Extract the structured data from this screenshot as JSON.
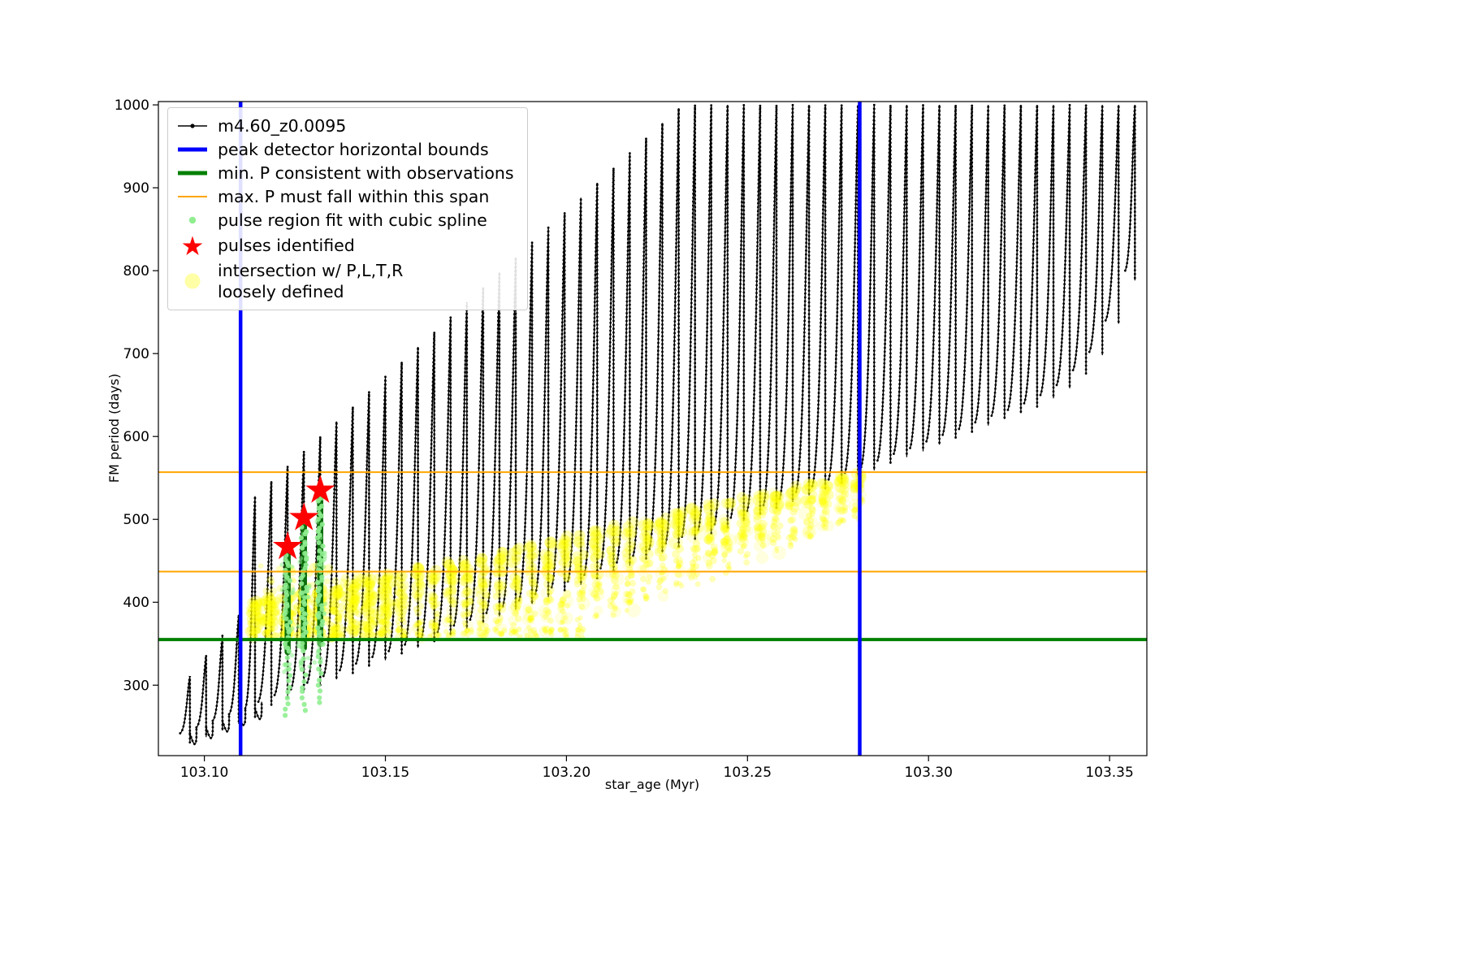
{
  "figure": {
    "background": "#ffffff"
  },
  "chart_data": {
    "type": "scatter",
    "title": "",
    "xlabel": "star_age (Myr)",
    "ylabel": "FM period (days)",
    "xlim": [
      103.0873,
      103.3603
    ],
    "ylim": [
      215,
      1004
    ],
    "grid": false,
    "legend_position": "upper left",
    "x_ticks": [
      103.1,
      103.15,
      103.2,
      103.25,
      103.3,
      103.35
    ],
    "x_tick_labels": [
      "103.10",
      "103.15",
      "103.20",
      "103.25",
      "103.30",
      "103.35"
    ],
    "y_ticks": [
      300,
      400,
      500,
      600,
      700,
      800,
      900,
      1000
    ],
    "y_tick_labels": [
      "300",
      "400",
      "500",
      "600",
      "700",
      "800",
      "900",
      "1000"
    ],
    "legend": [
      {
        "label": "m4.60_z0.0095",
        "marker": "line-point",
        "color": "#000000"
      },
      {
        "label": "peak detector horizontal bounds",
        "marker": "thick-line",
        "color": "#0000ff"
      },
      {
        "label": "min. P consistent with observations",
        "marker": "thick-line",
        "color": "#008000"
      },
      {
        "label": "max. P must fall within this span",
        "marker": "line",
        "color": "#ffa500"
      },
      {
        "label": "pulse region fit with cubic spline",
        "marker": "point",
        "color": "#90ee90"
      },
      {
        "label": "pulses identified",
        "marker": "star",
        "color": "#ff0000"
      },
      {
        "label": "intersection w/ P,L,T,R\nloosely defined",
        "marker": "big-point",
        "color": "#ffff00"
      }
    ],
    "annotations": {
      "peak_detector_bounds_x": [
        103.11,
        103.281
      ],
      "peak_detector_color": "#0000ff",
      "min_P_y": 355,
      "min_P_color": "#008000",
      "max_P_span_y": [
        437,
        557
      ],
      "max_P_color": "#ffa500"
    },
    "series": {
      "track": {
        "name": "m4.60_z0.0095",
        "color": "#000000",
        "marker": "point",
        "pulse_spikes": [
          [
            103.096,
            242,
            311
          ],
          [
            103.1005,
            249,
            336
          ],
          [
            103.105,
            257,
            360
          ],
          [
            103.1095,
            265,
            385
          ],
          [
            103.114,
            272,
            528
          ],
          [
            103.1185,
            280,
            546
          ],
          [
            103.123,
            288,
            564
          ],
          [
            103.1275,
            295,
            582
          ],
          [
            103.132,
            303,
            600
          ],
          [
            103.1365,
            311,
            618
          ],
          [
            103.141,
            318,
            636
          ],
          [
            103.1455,
            326,
            654
          ],
          [
            103.15,
            334,
            672
          ],
          [
            103.1545,
            341,
            690
          ],
          [
            103.159,
            349,
            708
          ],
          [
            103.1635,
            356,
            726
          ],
          [
            103.168,
            364,
            744
          ],
          [
            103.1725,
            372,
            762
          ],
          [
            103.177,
            379,
            780
          ],
          [
            103.1815,
            387,
            798
          ],
          [
            103.186,
            395,
            816
          ],
          [
            103.1905,
            402,
            834
          ],
          [
            103.195,
            410,
            852
          ],
          [
            103.1995,
            418,
            870
          ],
          [
            103.204,
            425,
            888
          ],
          [
            103.2085,
            433,
            906
          ],
          [
            103.213,
            441,
            924
          ],
          [
            103.2175,
            448,
            942
          ],
          [
            103.222,
            456,
            960
          ],
          [
            103.2265,
            464,
            978
          ],
          [
            103.231,
            471,
            996
          ],
          [
            103.2355,
            479,
            1000
          ],
          [
            103.24,
            487,
            1000
          ],
          [
            103.2445,
            494,
            1000
          ],
          [
            103.249,
            502,
            1000
          ],
          [
            103.2535,
            510,
            1000
          ],
          [
            103.258,
            517,
            1000
          ],
          [
            103.2625,
            525,
            1000
          ],
          [
            103.267,
            533,
            1000
          ],
          [
            103.2715,
            540,
            1000
          ],
          [
            103.276,
            548,
            1000
          ],
          [
            103.2805,
            556,
            1000
          ],
          [
            103.285,
            563,
            1000
          ],
          [
            103.2895,
            571,
            1000
          ],
          [
            103.294,
            579,
            1000
          ],
          [
            103.2985,
            586,
            1000
          ],
          [
            103.303,
            594,
            1000
          ],
          [
            103.3075,
            602,
            1000
          ],
          [
            103.312,
            609,
            1000
          ],
          [
            103.3165,
            617,
            1000
          ],
          [
            103.321,
            625,
            1000
          ],
          [
            103.3255,
            632,
            1000
          ],
          [
            103.33,
            640,
            1000
          ],
          [
            103.3345,
            650,
            1000
          ],
          [
            103.339,
            662,
            1000
          ],
          [
            103.3435,
            680,
            1000
          ],
          [
            103.348,
            702,
            1000
          ],
          [
            103.3525,
            740,
            1000
          ],
          [
            103.357,
            800,
            1000
          ]
        ]
      },
      "pulse_region_fit": {
        "name": "pulse region fit with cubic spline",
        "color": "#90ee90",
        "dense_color": "#0b6d0b",
        "clusters": [
          {
            "x": 103.123,
            "y_min": 263,
            "dense_from": 340,
            "y_max": 470
          },
          {
            "x": 103.1275,
            "y_min": 270,
            "dense_from": 345,
            "y_max": 500
          },
          {
            "x": 103.132,
            "y_min": 278,
            "dense_from": 350,
            "y_max": 532
          }
        ]
      },
      "pulses_identified": {
        "name": "pulses identified",
        "color": "#ff0000",
        "marker": "star",
        "points": [
          [
            103.123,
            467
          ],
          [
            103.1275,
            502
          ],
          [
            103.132,
            535
          ]
        ]
      },
      "intersection": {
        "name": "intersection w/ P,L,T,R loosely defined",
        "color": "#ffff00",
        "x_range": [
          103.112,
          103.282
        ],
        "y_lower": 355,
        "upper_envelope": [
          [
            103.112,
            400
          ],
          [
            103.155,
            437
          ],
          [
            103.281,
            557
          ]
        ]
      }
    }
  }
}
